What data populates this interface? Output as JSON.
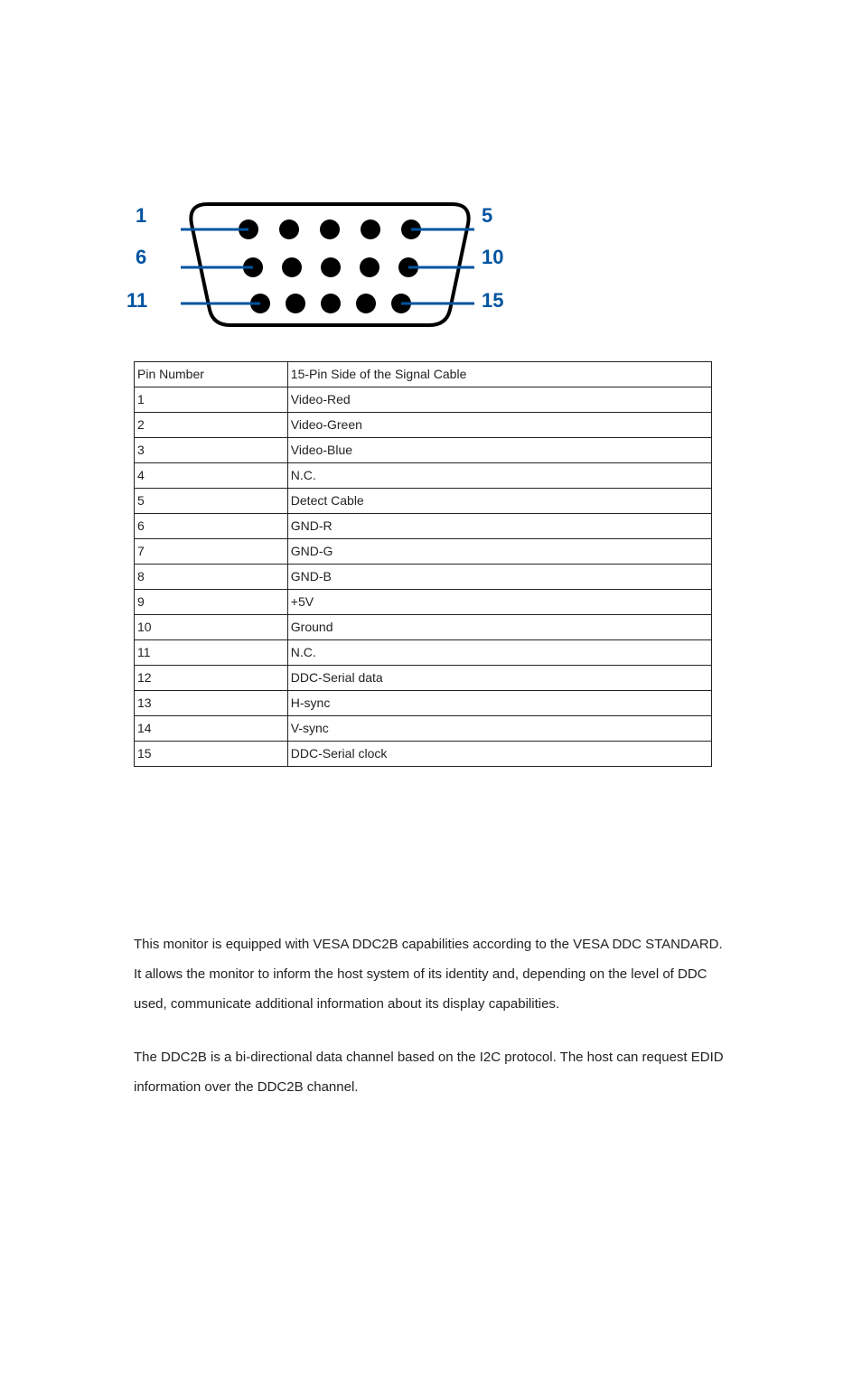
{
  "diagram": {
    "labels": {
      "l1": "1",
      "l5": "5",
      "l6": "6",
      "l10": "10",
      "l11": "11",
      "l15": "15"
    },
    "shell_stroke": "#000000",
    "shell_stroke_width": 4,
    "pin_fill": "#000000",
    "pin_radius": 11,
    "label_color": "#0054a0",
    "label_fontsize": 22,
    "label_weight": "bold",
    "row1_pins": 5,
    "row2_pins": 5,
    "row3_pins": 5,
    "leader_stroke": "#0054a0",
    "leader_width": 3
  },
  "table": {
    "header_pin": "Pin Number",
    "header_desc": "15-Pin Side of the Signal Cable",
    "rows": [
      {
        "pin": "1",
        "desc": "Video-Red"
      },
      {
        "pin": "2",
        "desc": "Video-Green"
      },
      {
        "pin": "3",
        "desc": "Video-Blue"
      },
      {
        "pin": "4",
        "desc": "N.C."
      },
      {
        "pin": "5",
        "desc": "Detect Cable"
      },
      {
        "pin": "6",
        "desc": "GND-R"
      },
      {
        "pin": "7",
        "desc": "GND-G"
      },
      {
        "pin": "8",
        "desc": "GND-B"
      },
      {
        "pin": "9",
        "desc": "+5V"
      },
      {
        "pin": "10",
        "desc": "Ground"
      },
      {
        "pin": "11",
        "desc": "N.C."
      },
      {
        "pin": "12",
        "desc": "DDC-Serial data"
      },
      {
        "pin": "13",
        "desc": "H-sync"
      },
      {
        "pin": "14",
        "desc": "V-sync"
      },
      {
        "pin": "15",
        "desc": "DDC-Serial clock"
      }
    ],
    "font_size": 14,
    "border_color": "#222222",
    "text_color": "#222222",
    "col_a_width": 170,
    "col_b_width": 470
  },
  "text": {
    "p1": "This monitor is equipped with VESA DDC2B capabilities according to the VESA DDC STANDARD. It allows the monitor to inform the host system of its identity and, depending on the level of DDC used, communicate additional information about its display capabilities.",
    "p2": "The DDC2B is a bi-directional data channel based on the I2C protocol. The host can request EDID information over the DDC2B channel.",
    "font_size": 15,
    "line_height": 2.2,
    "text_color": "#222222"
  }
}
